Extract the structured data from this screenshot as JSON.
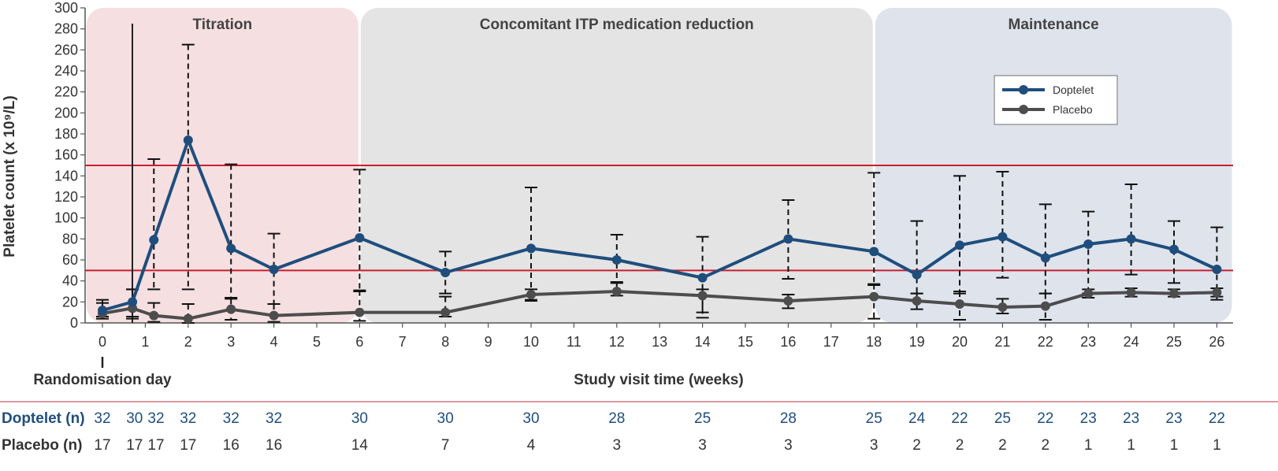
{
  "chart_data": {
    "type": "line",
    "title": "",
    "xlabel": "Study visit time (weeks)",
    "ylabel": "Platelet count (x 10⁹/L)",
    "ylim": [
      0,
      300
    ],
    "y_ticks": [
      0,
      20,
      40,
      60,
      80,
      100,
      120,
      140,
      160,
      180,
      200,
      220,
      240,
      260,
      280,
      300
    ],
    "x_ticks": [
      0,
      1,
      2,
      3,
      4,
      5,
      6,
      7,
      8,
      9,
      10,
      11,
      12,
      13,
      14,
      15,
      16,
      17,
      18,
      19,
      20,
      21,
      22,
      23,
      24,
      25,
      26
    ],
    "grid": false,
    "legend_position": "top-right",
    "reference_lines": [
      50,
      150
    ],
    "reference_line_color": "#c8202f",
    "randomisation_marker_x": 0,
    "randomisation_label": "Randomisation day",
    "phases": [
      {
        "label": "Titration",
        "x_start": -0.4,
        "x_end": 6,
        "color": "#f5dfe1"
      },
      {
        "label": "Concomitant ITP medication reduction",
        "x_start": 6,
        "x_end": 18,
        "color": "#e4e4e4"
      },
      {
        "label": "Maintenance",
        "x_start": 18,
        "x_end": 26.5,
        "color": "#dee3ec"
      }
    ],
    "series": [
      {
        "name": "Doptelet",
        "color": "#1f4e7d",
        "x": [
          0,
          0.7,
          1.2,
          2,
          3,
          4,
          6,
          8,
          10,
          12,
          14,
          16,
          18,
          19,
          20,
          21,
          22,
          23,
          24,
          25,
          26
        ],
        "y": [
          12,
          20,
          79,
          174,
          71,
          51,
          81,
          48,
          71,
          60,
          43,
          80,
          68,
          46,
          74,
          82,
          62,
          75,
          80,
          70,
          51
        ],
        "error_low": [
          6,
          4,
          32,
          32,
          24,
          18,
          30,
          28,
          22,
          38,
          10,
          42,
          36,
          28,
          28,
          43,
          28,
          28,
          46,
          38,
          22
        ],
        "error_high": [
          22,
          32,
          156,
          265,
          151,
          85,
          146,
          68,
          129,
          84,
          82,
          117,
          143,
          97,
          140,
          144,
          113,
          106,
          132,
          97,
          91
        ]
      },
      {
        "name": "Placebo",
        "color": "#4d4d4d",
        "x": [
          0,
          0.7,
          1.2,
          2,
          3,
          4,
          6,
          8,
          10,
          12,
          14,
          16,
          18,
          19,
          20,
          21,
          22,
          23,
          24,
          25,
          26
        ],
        "y": [
          9,
          14,
          7,
          4,
          13,
          7,
          10,
          10,
          27,
          30,
          26,
          21,
          25,
          21,
          18,
          15,
          16,
          28,
          29,
          28,
          29
        ],
        "error_low": [
          4,
          6,
          1,
          0,
          3,
          1,
          2,
          6,
          21,
          26,
          5,
          14,
          4,
          13,
          3,
          9,
          3,
          24,
          25,
          25,
          25
        ],
        "error_high": [
          19,
          32,
          19,
          18,
          23,
          18,
          31,
          25,
          32,
          39,
          32,
          27,
          37,
          28,
          30,
          23,
          28,
          32,
          33,
          32,
          33
        ]
      }
    ],
    "n_table": {
      "rows": [
        {
          "label": "Doptelet (n)",
          "color": "#1f4e7d",
          "x": [
            0,
            0.75,
            1.25,
            2,
            3,
            4,
            6,
            8,
            10,
            12,
            14,
            16,
            18,
            19,
            20,
            21,
            22,
            23,
            24,
            25,
            26
          ],
          "values": [
            "32",
            "30",
            "32",
            "32",
            "32",
            "32",
            "30",
            "30",
            "30",
            "28",
            "25",
            "28",
            "25",
            "24",
            "22",
            "25",
            "22",
            "23",
            "23",
            "23",
            "22"
          ]
        },
        {
          "label": "Placebo (n)",
          "color": "#333333",
          "x": [
            0,
            0.75,
            1.25,
            2,
            3,
            4,
            6,
            8,
            10,
            12,
            14,
            16,
            18,
            19,
            20,
            21,
            22,
            23,
            24,
            25,
            26
          ],
          "values": [
            "17",
            "17",
            "17",
            "17",
            "16",
            "16",
            "14",
            "7",
            "4",
            "3",
            "3",
            "3",
            "3",
            "2",
            "2",
            "2",
            "2",
            "1",
            "1",
            "1",
            "1"
          ]
        }
      ]
    }
  }
}
